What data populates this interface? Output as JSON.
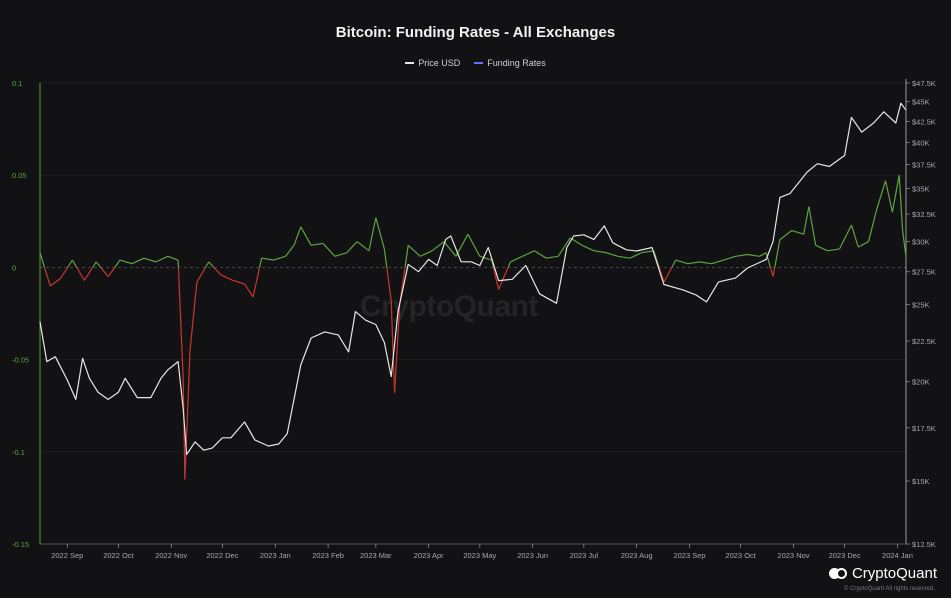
{
  "chart_title": "Bitcoin: Funding Rates - All Exchanges",
  "legend": [
    {
      "label": "Price USD",
      "color": "#e6e6e6"
    },
    {
      "label": "Funding Rates",
      "color": "#6b6bff"
    }
  ],
  "watermark": "CryptoQuant",
  "brand": {
    "name": "CryptoQuant",
    "copyright": "© CryptoQuant All rights reserved."
  },
  "colors": {
    "positive_funding": "#5fa33e",
    "negative_funding": "#c8372d",
    "price": "#e6e6e6",
    "left_axis": "#5fa33e"
  },
  "chart_data": {
    "type": "line",
    "title": "Bitcoin: Funding Rates - All Exchanges",
    "x_range": [
      "2022-08-16",
      "2024-01-06"
    ],
    "x_ticks": [
      "2022 Sep",
      "2022 Oct",
      "2022 Nov",
      "2022 Dec",
      "2023 Jan",
      "2023 Feb",
      "2023 Mar",
      "2023 Apr",
      "2023 May",
      "2023 Jun",
      "2023 Jul",
      "2023 Aug",
      "2023 Sep",
      "2023 Oct",
      "2023 Nov",
      "2023 Dec",
      "2024 Jan"
    ],
    "y_left": {
      "label": "",
      "ticks": [
        "0.1",
        "0.05",
        "0",
        "-0.05",
        "-0.1",
        "-0.15"
      ],
      "ylim": [
        -0.15,
        0.1
      ]
    },
    "y_right": {
      "label": "",
      "ticks": [
        "$47.5K",
        "$45K",
        "$42.5K",
        "$40K",
        "$37.5K",
        "$35K",
        "$32.5K",
        "$30K",
        "$27.5K",
        "$25K",
        "$22.5K",
        "$20K",
        "$17.5K",
        "$15K",
        "$12.5K"
      ],
      "ylim": [
        12500,
        47500
      ],
      "scale": "log"
    },
    "grid": true,
    "legend_position": "top-center",
    "series": [
      {
        "name": "Price USD",
        "axis": "right",
        "points": [
          [
            "2022-08-16",
            23800
          ],
          [
            "2022-08-20",
            21200
          ],
          [
            "2022-08-25",
            21500
          ],
          [
            "2022-09-01",
            20100
          ],
          [
            "2022-09-06",
            19000
          ],
          [
            "2022-09-10",
            21400
          ],
          [
            "2022-09-14",
            20200
          ],
          [
            "2022-09-19",
            19400
          ],
          [
            "2022-09-25",
            19000
          ],
          [
            "2022-10-01",
            19400
          ],
          [
            "2022-10-05",
            20200
          ],
          [
            "2022-10-12",
            19100
          ],
          [
            "2022-10-20",
            19100
          ],
          [
            "2022-10-26",
            20200
          ],
          [
            "2022-10-30",
            20700
          ],
          [
            "2022-11-05",
            21200
          ],
          [
            "2022-11-08",
            18500
          ],
          [
            "2022-11-10",
            16200
          ],
          [
            "2022-11-15",
            16800
          ],
          [
            "2022-11-20",
            16400
          ],
          [
            "2022-11-25",
            16500
          ],
          [
            "2022-12-01",
            17000
          ],
          [
            "2022-12-06",
            17000
          ],
          [
            "2022-12-14",
            17800
          ],
          [
            "2022-12-20",
            16900
          ],
          [
            "2022-12-28",
            16600
          ],
          [
            "2023-01-03",
            16700
          ],
          [
            "2023-01-08",
            17200
          ],
          [
            "2023-01-12",
            19000
          ],
          [
            "2023-01-16",
            21000
          ],
          [
            "2023-01-22",
            22700
          ],
          [
            "2023-01-30",
            23100
          ],
          [
            "2023-02-07",
            22900
          ],
          [
            "2023-02-13",
            21800
          ],
          [
            "2023-02-17",
            24500
          ],
          [
            "2023-02-23",
            23900
          ],
          [
            "2023-03-01",
            23600
          ],
          [
            "2023-03-06",
            22400
          ],
          [
            "2023-03-10",
            20300
          ],
          [
            "2023-03-14",
            24500
          ],
          [
            "2023-03-20",
            28100
          ],
          [
            "2023-03-26",
            27500
          ],
          [
            "2023-04-01",
            28500
          ],
          [
            "2023-04-06",
            28000
          ],
          [
            "2023-04-11",
            30200
          ],
          [
            "2023-04-14",
            30500
          ],
          [
            "2023-04-20",
            28300
          ],
          [
            "2023-04-26",
            28300
          ],
          [
            "2023-05-01",
            28000
          ],
          [
            "2023-05-06",
            29500
          ],
          [
            "2023-05-12",
            26800
          ],
          [
            "2023-05-20",
            26900
          ],
          [
            "2023-05-28",
            28000
          ],
          [
            "2023-06-05",
            25800
          ],
          [
            "2023-06-15",
            25100
          ],
          [
            "2023-06-21",
            29500
          ],
          [
            "2023-06-25",
            30500
          ],
          [
            "2023-07-01",
            30600
          ],
          [
            "2023-07-07",
            30200
          ],
          [
            "2023-07-13",
            31400
          ],
          [
            "2023-07-18",
            29900
          ],
          [
            "2023-07-26",
            29300
          ],
          [
            "2023-08-01",
            29200
          ],
          [
            "2023-08-10",
            29500
          ],
          [
            "2023-08-17",
            26500
          ],
          [
            "2023-08-28",
            26100
          ],
          [
            "2023-09-05",
            25700
          ],
          [
            "2023-09-11",
            25200
          ],
          [
            "2023-09-18",
            26700
          ],
          [
            "2023-09-28",
            27000
          ],
          [
            "2023-10-05",
            27800
          ],
          [
            "2023-10-16",
            28500
          ],
          [
            "2023-10-20",
            30000
          ],
          [
            "2023-10-24",
            34100
          ],
          [
            "2023-10-30",
            34500
          ],
          [
            "2023-11-09",
            36700
          ],
          [
            "2023-11-15",
            37600
          ],
          [
            "2023-11-22",
            37300
          ],
          [
            "2023-12-01",
            38500
          ],
          [
            "2023-12-05",
            43000
          ],
          [
            "2023-12-11",
            41200
          ],
          [
            "2023-12-18",
            42300
          ],
          [
            "2023-12-24",
            43700
          ],
          [
            "2023-12-31",
            42300
          ],
          [
            "2024-01-03",
            44800
          ],
          [
            "2024-01-06",
            43900
          ]
        ]
      },
      {
        "name": "Funding Rates",
        "axis": "left",
        "points": [
          [
            "2022-08-16",
            0.008
          ],
          [
            "2022-08-22",
            -0.01
          ],
          [
            "2022-08-28",
            -0.006
          ],
          [
            "2022-09-04",
            0.004
          ],
          [
            "2022-09-11",
            -0.007
          ],
          [
            "2022-09-18",
            0.003
          ],
          [
            "2022-09-25",
            -0.005
          ],
          [
            "2022-10-02",
            0.004
          ],
          [
            "2022-10-09",
            0.002
          ],
          [
            "2022-10-16",
            0.005
          ],
          [
            "2022-10-23",
            0.003
          ],
          [
            "2022-10-30",
            0.006
          ],
          [
            "2022-11-05",
            0.004
          ],
          [
            "2022-11-08",
            -0.06
          ],
          [
            "2022-11-09",
            -0.115
          ],
          [
            "2022-11-12",
            -0.045
          ],
          [
            "2022-11-16",
            -0.008
          ],
          [
            "2022-11-23",
            0.003
          ],
          [
            "2022-11-30",
            -0.004
          ],
          [
            "2022-12-07",
            -0.007
          ],
          [
            "2022-12-14",
            -0.009
          ],
          [
            "2022-12-19",
            -0.016
          ],
          [
            "2022-12-24",
            0.005
          ],
          [
            "2022-12-31",
            0.004
          ],
          [
            "2023-01-07",
            0.006
          ],
          [
            "2023-01-12",
            0.012
          ],
          [
            "2023-01-16",
            0.022
          ],
          [
            "2023-01-22",
            0.012
          ],
          [
            "2023-01-29",
            0.013
          ],
          [
            "2023-02-05",
            0.006
          ],
          [
            "2023-02-12",
            0.008
          ],
          [
            "2023-02-18",
            0.014
          ],
          [
            "2023-02-25",
            0.009
          ],
          [
            "2023-03-01",
            0.027
          ],
          [
            "2023-03-06",
            0.01
          ],
          [
            "2023-03-10",
            -0.018
          ],
          [
            "2023-03-12",
            -0.068
          ],
          [
            "2023-03-15",
            -0.02
          ],
          [
            "2023-03-20",
            0.012
          ],
          [
            "2023-03-27",
            0.006
          ],
          [
            "2023-04-03",
            0.009
          ],
          [
            "2023-04-10",
            0.014
          ],
          [
            "2023-04-17",
            0.006
          ],
          [
            "2023-04-24",
            0.018
          ],
          [
            "2023-05-01",
            0.006
          ],
          [
            "2023-05-08",
            0.004
          ],
          [
            "2023-05-12",
            -0.012
          ],
          [
            "2023-05-19",
            0.003
          ],
          [
            "2023-05-26",
            0.006
          ],
          [
            "2023-06-02",
            0.009
          ],
          [
            "2023-06-09",
            0.005
          ],
          [
            "2023-06-16",
            0.006
          ],
          [
            "2023-06-23",
            0.016
          ],
          [
            "2023-06-30",
            0.012
          ],
          [
            "2023-07-07",
            0.009
          ],
          [
            "2023-07-14",
            0.008
          ],
          [
            "2023-07-21",
            0.006
          ],
          [
            "2023-07-28",
            0.005
          ],
          [
            "2023-08-04",
            0.008
          ],
          [
            "2023-08-11",
            0.009
          ],
          [
            "2023-08-17",
            -0.008
          ],
          [
            "2023-08-24",
            0.004
          ],
          [
            "2023-08-31",
            0.002
          ],
          [
            "2023-09-07",
            0.003
          ],
          [
            "2023-09-14",
            0.002
          ],
          [
            "2023-09-21",
            0.004
          ],
          [
            "2023-09-28",
            0.006
          ],
          [
            "2023-10-05",
            0.007
          ],
          [
            "2023-10-12",
            0.006
          ],
          [
            "2023-10-16",
            0.008
          ],
          [
            "2023-10-20",
            -0.005
          ],
          [
            "2023-10-24",
            0.015
          ],
          [
            "2023-10-31",
            0.02
          ],
          [
            "2023-11-07",
            0.018
          ],
          [
            "2023-11-10",
            0.033
          ],
          [
            "2023-11-14",
            0.012
          ],
          [
            "2023-11-21",
            0.009
          ],
          [
            "2023-11-28",
            0.01
          ],
          [
            "2023-12-05",
            0.023
          ],
          [
            "2023-12-09",
            0.011
          ],
          [
            "2023-12-15",
            0.014
          ],
          [
            "2023-12-20",
            0.032
          ],
          [
            "2023-12-25",
            0.047
          ],
          [
            "2023-12-29",
            0.03
          ],
          [
            "2024-01-02",
            0.05
          ],
          [
            "2024-01-04",
            0.02
          ],
          [
            "2024-01-06",
            0.006
          ]
        ]
      }
    ]
  }
}
